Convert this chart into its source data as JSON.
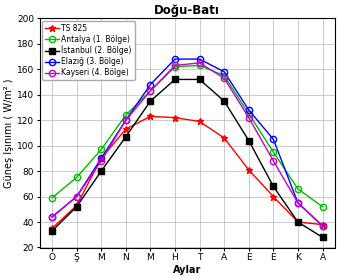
{
  "title": "Doğu-Batı",
  "xlabel": "Aylar",
  "ylabel": "Güneş Işınımı ( W/m² )",
  "x_labels": [
    "O",
    "Ş",
    "M",
    "N",
    "M",
    "H",
    "T",
    "A",
    "E",
    "E",
    "K",
    "A"
  ],
  "ylim": [
    20,
    200
  ],
  "yticks": [
    20,
    40,
    60,
    80,
    100,
    120,
    140,
    160,
    180,
    200
  ],
  "series": [
    {
      "label": "TS 825",
      "color": "#ff0000",
      "marker": "*",
      "marker_size": 4.5,
      "marker_facecolor": "#ff0000",
      "values": [
        35,
        53,
        90,
        113,
        123,
        122,
        119,
        106,
        81,
        60,
        40,
        38
      ]
    },
    {
      "label": "Antalya (1. Bölge)",
      "color": "#00bb00",
      "marker": "o",
      "marker_size": 4.5,
      "marker_facecolor": "none",
      "values": [
        59,
        75,
        97,
        124,
        143,
        162,
        163,
        155,
        125,
        95,
        66,
        52
      ]
    },
    {
      "label": "İstanbul (2. Bölge)",
      "color": "#000000",
      "marker": "s",
      "marker_size": 4.0,
      "marker_facecolor": "#000000",
      "values": [
        33,
        52,
        80,
        107,
        135,
        152,
        152,
        135,
        104,
        68,
        40,
        28
      ]
    },
    {
      "label": "Elazığ (3. Bölge)",
      "color": "#0000ff",
      "marker": "o",
      "marker_size": 4.5,
      "marker_facecolor": "none",
      "values": [
        44,
        60,
        90,
        120,
        148,
        168,
        168,
        158,
        128,
        105,
        55,
        37
      ]
    },
    {
      "label": "Kayseri (4. Bölge)",
      "color": "#cc00cc",
      "marker": "o",
      "marker_size": 4.5,
      "marker_facecolor": "none",
      "values": [
        44,
        60,
        88,
        120,
        143,
        163,
        165,
        153,
        122,
        88,
        55,
        37
      ]
    }
  ],
  "background_color": "#ffffff",
  "grid_color": "#b8b8b8",
  "title_fontsize": 8.5,
  "label_fontsize": 7.0,
  "tick_fontsize": 6.5,
  "legend_fontsize": 5.5
}
